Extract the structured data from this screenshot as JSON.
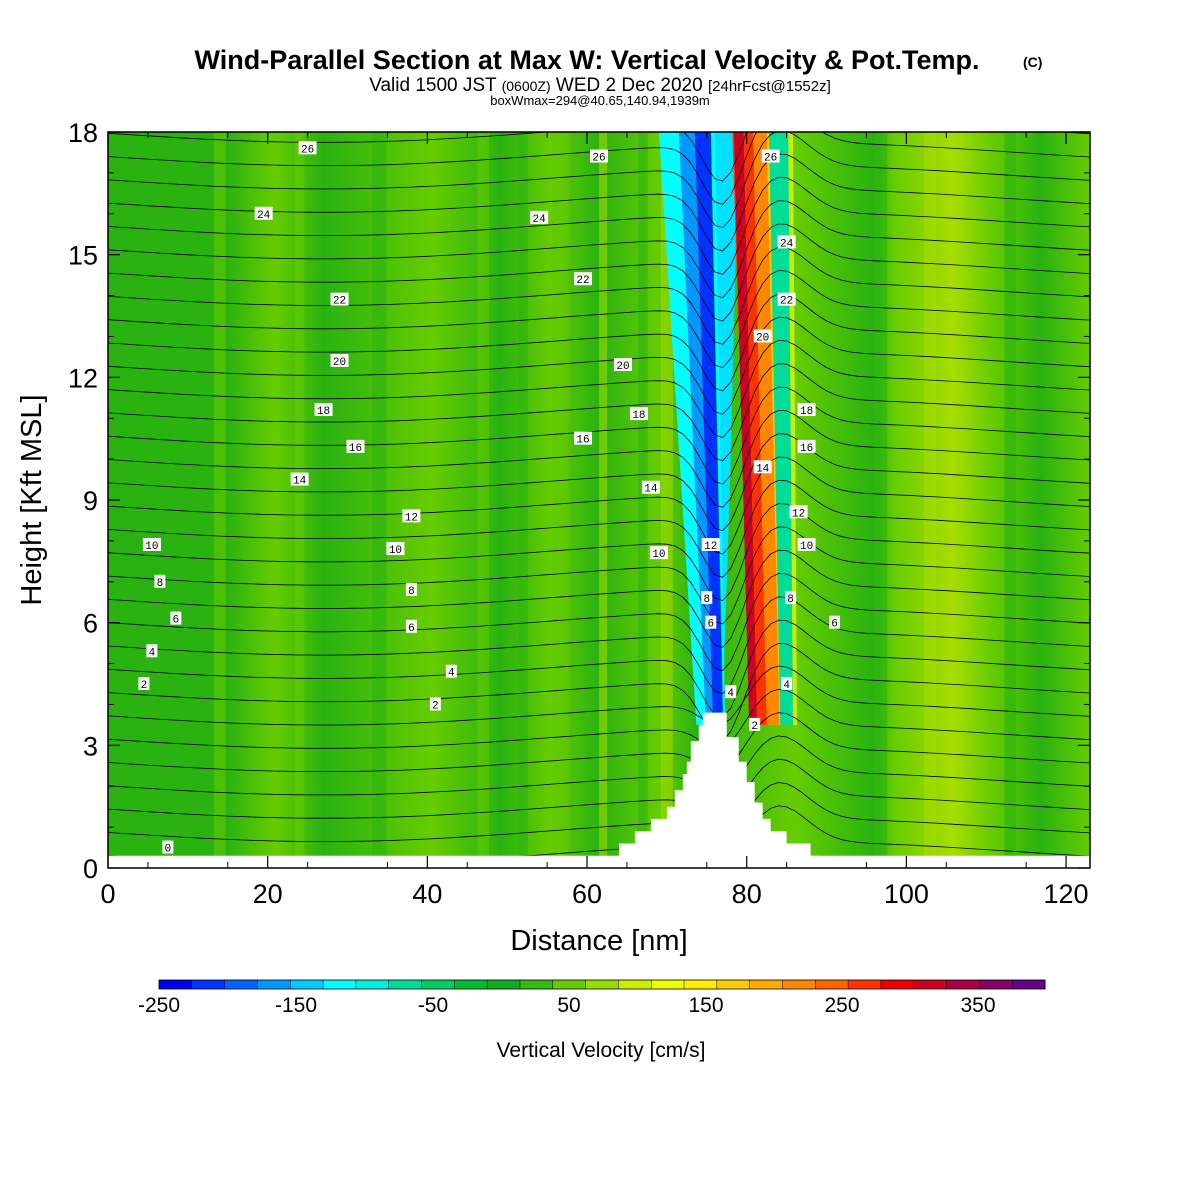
{
  "header": {
    "title": "Wind-Parallel Section at Max W: Vertical Velocity & Pot.Temp.",
    "title_mark": "(C)",
    "valid_prefix": "Valid 1500 JST",
    "valid_utc": "(0600Z)",
    "valid_date": "WED 2 Dec 2020",
    "forecast_note": "[24hrFcst@1552z]",
    "boxwmax": "boxWmax=294@40.65,140.94,1939m"
  },
  "colorbar": {
    "title": "Vertical Velocity [cm/s]",
    "ticks": [
      "-250",
      "-150",
      "-50",
      "50",
      "150",
      "250",
      "350"
    ],
    "colors": [
      "#0000f0",
      "#0033ff",
      "#0066ff",
      "#0099ff",
      "#00ccff",
      "#00ffff",
      "#00eedd",
      "#00dd99",
      "#00cc66",
      "#00bb33",
      "#11aa22",
      "#33bb11",
      "#66cc00",
      "#99dd00",
      "#ccee00",
      "#eeff00",
      "#ffee00",
      "#ffcc00",
      "#ffaa00",
      "#ff8800",
      "#ff6600",
      "#ff3300",
      "#ee0000",
      "#cc0022",
      "#aa0044",
      "#880066",
      "#660088"
    ]
  },
  "chart_data": {
    "type": "heatmap",
    "title": "Wind-Parallel Section at Max W: Vertical Velocity & Pot.Temp.",
    "xlabel": "Distance [nm]",
    "ylabel": "Height [Kft MSL]",
    "xlim": [
      0,
      123
    ],
    "ylim": [
      0,
      18
    ],
    "x_ticks": [
      0,
      20,
      40,
      60,
      80,
      100,
      120
    ],
    "y_ticks": [
      0,
      3,
      6,
      9,
      12,
      15,
      18
    ],
    "shaded_field": "Vertical Velocity [cm/s]",
    "shading_range": [
      -250,
      400
    ],
    "background_colors": {
      "green_dark": "#2ab211",
      "green_light": "#66cc00",
      "yellow_green": "#a8dd00"
    },
    "updraft_core": {
      "x_center": 80,
      "max_value": 294
    },
    "downdraft_core": {
      "x_center": 76
    },
    "terrain": [
      [
        63,
        0
      ],
      [
        64,
        0
      ],
      [
        64,
        0.6
      ],
      [
        66,
        0.6
      ],
      [
        66,
        0.9
      ],
      [
        68,
        0.9
      ],
      [
        68,
        1.2
      ],
      [
        70,
        1.2
      ],
      [
        70,
        1.5
      ],
      [
        71,
        1.5
      ],
      [
        71,
        1.9
      ],
      [
        72,
        1.9
      ],
      [
        72,
        2.3
      ],
      [
        72.5,
        2.3
      ],
      [
        72.5,
        2.6
      ],
      [
        73,
        2.6
      ],
      [
        73,
        3.1
      ],
      [
        74,
        3.1
      ],
      [
        74,
        3.5
      ],
      [
        74.5,
        3.5
      ],
      [
        74.5,
        3.8
      ],
      [
        77.5,
        3.8
      ],
      [
        77.5,
        3.2
      ],
      [
        79,
        3.2
      ],
      [
        79,
        2.6
      ],
      [
        80,
        2.6
      ],
      [
        80,
        2.1
      ],
      [
        81,
        2.1
      ],
      [
        81,
        1.6
      ],
      [
        82,
        1.6
      ],
      [
        82,
        1.2
      ],
      [
        83,
        1.2
      ],
      [
        83,
        0.9
      ],
      [
        85,
        0.9
      ],
      [
        85,
        0.6
      ],
      [
        88,
        0.6
      ],
      [
        88,
        0.3
      ],
      [
        89,
        0.3
      ],
      [
        89,
        0
      ]
    ],
    "theta_contour_labels": [
      {
        "v": "26",
        "x": 25,
        "y": 17.6
      },
      {
        "v": "26",
        "x": 61.5,
        "y": 17.4
      },
      {
        "v": "26",
        "x": 83,
        "y": 17.4
      },
      {
        "v": "24",
        "x": 19.5,
        "y": 16.0
      },
      {
        "v": "24",
        "x": 54,
        "y": 15.9
      },
      {
        "v": "24",
        "x": 85,
        "y": 15.3
      },
      {
        "v": "22",
        "x": 29,
        "y": 13.9
      },
      {
        "v": "22",
        "x": 59.5,
        "y": 14.4
      },
      {
        "v": "22",
        "x": 85,
        "y": 13.9
      },
      {
        "v": "20",
        "x": 29,
        "y": 12.4
      },
      {
        "v": "20",
        "x": 64.5,
        "y": 12.3
      },
      {
        "v": "20",
        "x": 82,
        "y": 13.0
      },
      {
        "v": "18",
        "x": 27,
        "y": 11.2
      },
      {
        "v": "18",
        "x": 66.5,
        "y": 11.1
      },
      {
        "v": "18",
        "x": 87.5,
        "y": 11.2
      },
      {
        "v": "16",
        "x": 31,
        "y": 10.3
      },
      {
        "v": "16",
        "x": 59.5,
        "y": 10.5
      },
      {
        "v": "16",
        "x": 87.5,
        "y": 10.3
      },
      {
        "v": "14",
        "x": 24,
        "y": 9.5
      },
      {
        "v": "14",
        "x": 68,
        "y": 9.3
      },
      {
        "v": "14",
        "x": 82,
        "y": 9.8
      },
      {
        "v": "12",
        "x": 38,
        "y": 8.6
      },
      {
        "v": "12",
        "x": 75.5,
        "y": 7.9
      },
      {
        "v": "12",
        "x": 86.5,
        "y": 8.7
      },
      {
        "v": "10",
        "x": 5.5,
        "y": 7.9
      },
      {
        "v": "10",
        "x": 36,
        "y": 7.8
      },
      {
        "v": "10",
        "x": 69,
        "y": 7.7
      },
      {
        "v": "10",
        "x": 87.5,
        "y": 7.9
      },
      {
        "v": "8",
        "x": 6.5,
        "y": 7.0
      },
      {
        "v": "8",
        "x": 38,
        "y": 6.8
      },
      {
        "v": "8",
        "x": 75,
        "y": 6.6
      },
      {
        "v": "8",
        "x": 85.5,
        "y": 6.6
      },
      {
        "v": "6",
        "x": 8.5,
        "y": 6.1
      },
      {
        "v": "6",
        "x": 38,
        "y": 5.9
      },
      {
        "v": "6",
        "x": 75.5,
        "y": 6.0
      },
      {
        "v": "6",
        "x": 91,
        "y": 6.0
      },
      {
        "v": "4",
        "x": 5.5,
        "y": 5.3
      },
      {
        "v": "4",
        "x": 43,
        "y": 4.8
      },
      {
        "v": "4",
        "x": 78,
        "y": 4.3
      },
      {
        "v": "4",
        "x": 85,
        "y": 4.5
      },
      {
        "v": "2",
        "x": 4.5,
        "y": 4.5
      },
      {
        "v": "2",
        "x": 41,
        "y": 4.0
      },
      {
        "v": "2",
        "x": 81,
        "y": 3.5
      },
      {
        "v": "0",
        "x": 7.5,
        "y": 0.5
      }
    ]
  }
}
